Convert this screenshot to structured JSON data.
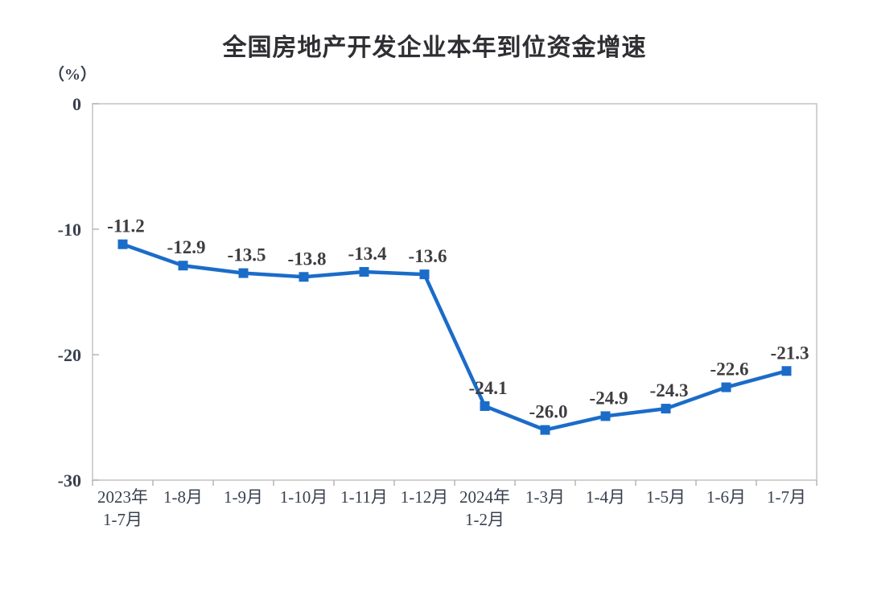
{
  "chart_data": {
    "type": "line",
    "title": "全国房地产开发企业本年到位资金增速",
    "unit_label": "（%）",
    "categories": [
      "2023年\n1-7月",
      "1-8月",
      "1-9月",
      "1-10月",
      "1-11月",
      "1-12月",
      "2024年\n1-2月",
      "1-3月",
      "1-4月",
      "1-5月",
      "1-6月",
      "1-7月"
    ],
    "values": [
      -11.2,
      -12.9,
      -13.5,
      -13.8,
      -13.4,
      -13.6,
      -24.1,
      -26.0,
      -24.9,
      -24.3,
      -22.6,
      -21.3
    ],
    "point_labels": [
      "-11.2",
      "-12.9",
      "-13.5",
      "-13.8",
      "-13.4",
      "-13.6",
      "-24.1",
      "-26.0",
      "-24.9",
      "-24.3",
      "-22.6",
      "-21.3"
    ],
    "ylim": [
      -30,
      0
    ],
    "yticks": [
      0,
      -10,
      -20,
      -30
    ],
    "ytick_labels": [
      "0",
      "-10",
      "-20",
      "-30"
    ],
    "grid": false,
    "legend": "none",
    "marker": "square",
    "line_color": "#1b6cc9",
    "marker_color": "#1b6cc9",
    "axis_color": "#c3c3c3",
    "tick_color": "#b5b5b5",
    "label_color": "#3d3d42",
    "axis_label_color": "#39404e",
    "title_color": "#2f2f33"
  }
}
